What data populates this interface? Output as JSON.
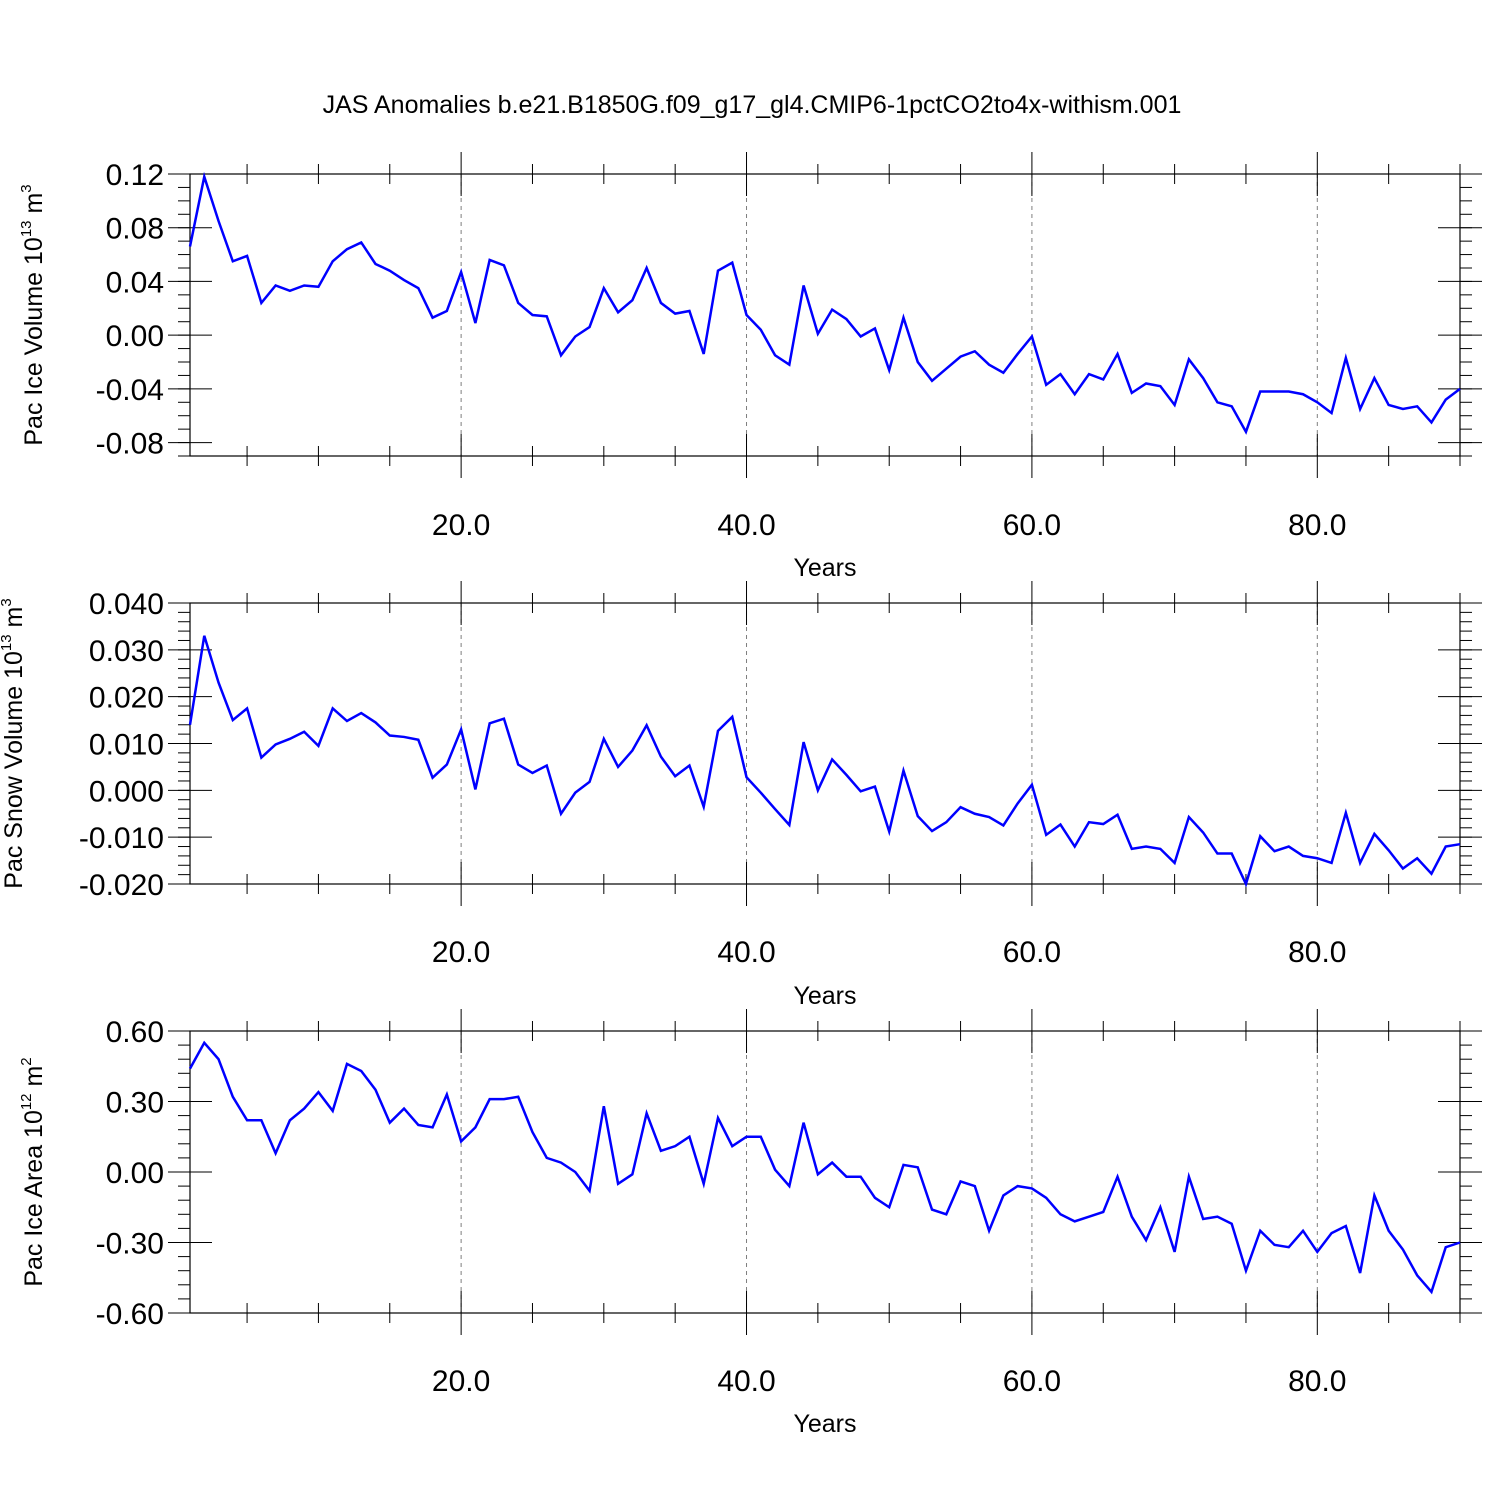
{
  "title": "JAS Anomalies b.e21.B1850G.f09_g17_gl4.CMIP6-1pctCO2to4x-withism.001",
  "line_color": "#0000ff",
  "chart_data": [
    {
      "type": "line",
      "xlabel": "Years",
      "ylabel": {
        "text": "Pac Ice Volume 10",
        "exp": "13",
        "unit": " m",
        "unit_exp": "3"
      },
      "xlim": [
        1,
        90
      ],
      "ylim": [
        -0.09,
        0.12
      ],
      "x_ticks": [
        20,
        40,
        60,
        80
      ],
      "x_tick_labels": [
        "20.0",
        "40.0",
        "60.0",
        "80.0"
      ],
      "y_ticks": [
        -0.08,
        -0.04,
        0.0,
        0.04,
        0.08,
        0.12
      ],
      "y_tick_labels": [
        "-0.08",
        "-0.04",
        "0.00",
        "0.04",
        "0.08",
        "0.12"
      ],
      "y_minor_step": 0.01,
      "grid": "vertical dashed at major x ticks",
      "values": [
        0.066,
        0.118,
        0.085,
        0.055,
        0.059,
        0.024,
        0.037,
        0.033,
        0.037,
        0.036,
        0.055,
        0.064,
        0.069,
        0.053,
        0.048,
        0.041,
        0.035,
        0.013,
        0.018,
        0.047,
        0.009,
        0.056,
        0.052,
        0.024,
        0.015,
        0.014,
        -0.015,
        -0.001,
        0.006,
        0.035,
        0.017,
        0.026,
        0.05,
        0.024,
        0.016,
        0.018,
        -0.014,
        0.048,
        0.054,
        0.015,
        0.004,
        -0.015,
        -0.022,
        0.037,
        0.001,
        0.019,
        0.012,
        -0.001,
        0.005,
        -0.026,
        0.013,
        -0.02,
        -0.034,
        -0.025,
        -0.016,
        -0.012,
        -0.022,
        -0.028,
        -0.014,
        -0.001,
        -0.037,
        -0.029,
        -0.044,
        -0.029,
        -0.033,
        -0.014,
        -0.043,
        -0.036,
        -0.038,
        -0.052,
        -0.018,
        -0.032,
        -0.05,
        -0.053,
        -0.072,
        -0.042,
        -0.042,
        -0.042,
        -0.044,
        -0.05,
        -0.058,
        -0.017,
        -0.055,
        -0.032,
        -0.052,
        -0.055,
        -0.053,
        -0.065,
        -0.048,
        -0.04
      ]
    },
    {
      "type": "line",
      "xlabel": "Years",
      "ylabel": {
        "text": "Pac Snow Volume 10",
        "exp": "13",
        "unit": " m",
        "unit_exp": "3"
      },
      "xlim": [
        1,
        90
      ],
      "ylim": [
        -0.02,
        0.04
      ],
      "x_ticks": [
        20,
        40,
        60,
        80
      ],
      "x_tick_labels": [
        "20.0",
        "40.0",
        "60.0",
        "80.0"
      ],
      "y_ticks": [
        -0.02,
        -0.01,
        0.0,
        0.01,
        0.02,
        0.03,
        0.04
      ],
      "y_tick_labels": [
        "-0.020",
        "-0.010",
        "0.000",
        "0.010",
        "0.020",
        "0.030",
        "0.040"
      ],
      "y_minor_step": 0.002,
      "grid": "vertical dashed at major x ticks",
      "values": [
        0.014,
        0.033,
        0.023,
        0.015,
        0.0175,
        0.007,
        0.0098,
        0.011,
        0.0125,
        0.0095,
        0.0175,
        0.0148,
        0.0165,
        0.0145,
        0.0117,
        0.0114,
        0.0108,
        0.0027,
        0.0055,
        0.013,
        0.0002,
        0.0143,
        0.0153,
        0.0055,
        0.0037,
        0.0053,
        -0.005,
        -0.0005,
        0.0018,
        0.011,
        0.005,
        0.0085,
        0.0139,
        0.0072,
        0.003,
        0.0053,
        -0.0035,
        0.0127,
        0.0157,
        0.0028,
        -0.0005,
        -0.004,
        -0.0074,
        0.0103,
        0.0,
        0.0066,
        0.0033,
        -0.0002,
        0.0008,
        -0.0088,
        0.0042,
        -0.0055,
        -0.0087,
        -0.0068,
        -0.0036,
        -0.005,
        -0.0057,
        -0.0075,
        -0.0028,
        0.0012,
        -0.0095,
        -0.0073,
        -0.012,
        -0.0068,
        -0.0072,
        -0.0052,
        -0.0125,
        -0.012,
        -0.0125,
        -0.0155,
        -0.0057,
        -0.009,
        -0.0135,
        -0.0135,
        -0.02,
        -0.0098,
        -0.013,
        -0.012,
        -0.014,
        -0.0145,
        -0.0155,
        -0.0048,
        -0.0155,
        -0.0093,
        -0.0128,
        -0.0167,
        -0.0145,
        -0.0178,
        -0.012,
        -0.0115
      ]
    },
    {
      "type": "line",
      "xlabel": "Years",
      "ylabel": {
        "text": "Pac Ice Area 10",
        "exp": "12",
        "unit": " m",
        "unit_exp": "2"
      },
      "xlim": [
        1,
        90
      ],
      "ylim": [
        -0.6,
        0.6
      ],
      "x_ticks": [
        20,
        40,
        60,
        80
      ],
      "x_tick_labels": [
        "20.0",
        "40.0",
        "60.0",
        "80.0"
      ],
      "y_ticks": [
        -0.6,
        -0.3,
        0.0,
        0.3,
        0.6
      ],
      "y_tick_labels": [
        "-0.60",
        "-0.30",
        "0.00",
        "0.30",
        "0.60"
      ],
      "y_minor_step": 0.06,
      "grid": "vertical dashed at major x ticks",
      "values": [
        0.44,
        0.55,
        0.48,
        0.32,
        0.22,
        0.22,
        0.08,
        0.22,
        0.27,
        0.34,
        0.26,
        0.46,
        0.43,
        0.35,
        0.21,
        0.27,
        0.2,
        0.19,
        0.33,
        0.13,
        0.19,
        0.31,
        0.31,
        0.32,
        0.17,
        0.06,
        0.04,
        0.0,
        -0.08,
        0.28,
        -0.05,
        -0.01,
        0.25,
        0.09,
        0.11,
        0.15,
        -0.05,
        0.23,
        0.11,
        0.15,
        0.15,
        0.01,
        -0.06,
        0.21,
        -0.01,
        0.04,
        -0.02,
        -0.02,
        -0.11,
        -0.15,
        0.03,
        0.02,
        -0.16,
        -0.18,
        -0.04,
        -0.06,
        -0.25,
        -0.1,
        -0.06,
        -0.07,
        -0.11,
        -0.18,
        -0.21,
        -0.19,
        -0.17,
        -0.02,
        -0.19,
        -0.29,
        -0.15,
        -0.34,
        -0.02,
        -0.2,
        -0.19,
        -0.22,
        -0.42,
        -0.25,
        -0.31,
        -0.32,
        -0.25,
        -0.34,
        -0.26,
        -0.23,
        -0.43,
        -0.1,
        -0.25,
        -0.33,
        -0.44,
        -0.51,
        -0.32,
        -0.3
      ]
    }
  ]
}
